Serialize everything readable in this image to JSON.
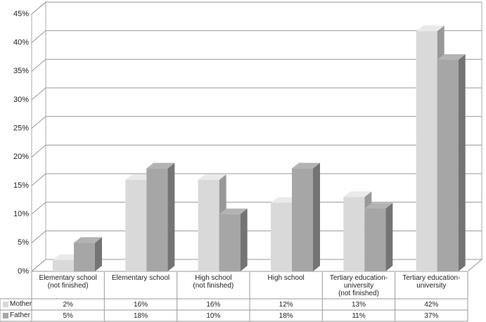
{
  "chart_data": {
    "type": "bar3d",
    "categories": [
      "Elementary school\n(not finished)",
      "Elementary school",
      "High school\n(not finished)",
      "High school",
      "Tertiary education-\nuniversity\n(not finished)",
      "Tertiary education-\nuniversity"
    ],
    "series": [
      {
        "name": "Mother",
        "color": "#d9d9d9",
        "values": [
          2,
          16,
          16,
          12,
          13,
          42
        ],
        "value_labels": [
          "2%",
          "16%",
          "16%",
          "12%",
          "13%",
          "42%"
        ]
      },
      {
        "name": "Father",
        "color": "#a6a6a6",
        "values": [
          5,
          18,
          10,
          18,
          11,
          37
        ],
        "value_labels": [
          "5%",
          "18%",
          "10%",
          "18%",
          "11%",
          "37%"
        ]
      }
    ],
    "ylim": [
      0,
      45
    ],
    "yticks": [
      {
        "value": 0,
        "label": "0%"
      },
      {
        "value": 5,
        "label": "5%"
      },
      {
        "value": 10,
        "label": "10%"
      },
      {
        "value": 15,
        "label": "15%"
      },
      {
        "value": 20,
        "label": "20%"
      },
      {
        "value": 25,
        "label": "25%"
      },
      {
        "value": 30,
        "label": "30%"
      },
      {
        "value": 35,
        "label": "35%"
      },
      {
        "value": 40,
        "label": "40%"
      },
      {
        "value": 45,
        "label": "45%"
      }
    ],
    "grid": true
  }
}
